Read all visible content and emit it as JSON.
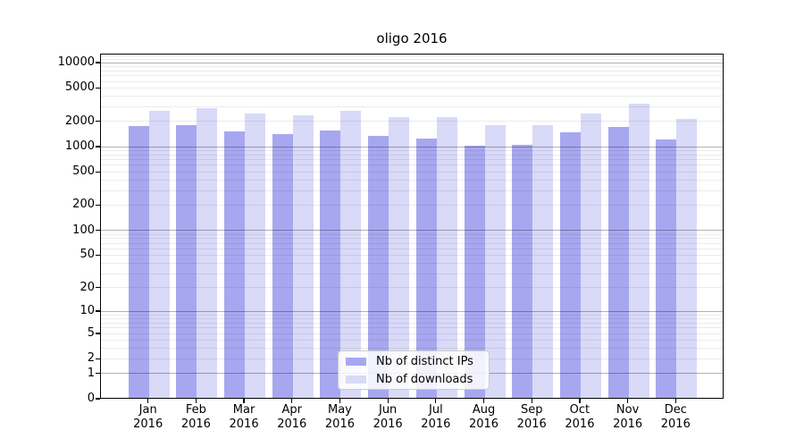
{
  "title": "oligo 2016",
  "chart_data": {
    "type": "bar",
    "scale": "log1p",
    "title": "oligo 2016",
    "xlabel": "",
    "ylabel": "",
    "categories": [
      "Jan",
      "Feb",
      "Mar",
      "Apr",
      "May",
      "Jun",
      "Jul",
      "Aug",
      "Sep",
      "Oct",
      "Nov",
      "Dec"
    ],
    "category_year": "2016",
    "series": [
      {
        "name": "Nb of distinct IPs",
        "color": "#a7a7f0",
        "values": [
          1730,
          1800,
          1510,
          1410,
          1530,
          1320,
          1230,
          1020,
          1040,
          1470,
          1690,
          1220
        ]
      },
      {
        "name": "Nb of downloads",
        "color": "#d9d9f8",
        "values": [
          2660,
          2870,
          2450,
          2320,
          2660,
          2220,
          2240,
          1770,
          1770,
          2480,
          3190,
          2140
        ]
      }
    ],
    "yticks": [
      10000,
      5000,
      2000,
      1000,
      500,
      200,
      100,
      50,
      20,
      10,
      5,
      2,
      1,
      0
    ],
    "ylim": [
      0,
      12770
    ],
    "grid": true,
    "grid_major_at": [
      1,
      10,
      100,
      1000,
      10000
    ],
    "legend_position": "lower-center",
    "colors": {
      "bar_dark": "#a7a7f0",
      "bar_light": "#d9d9f8",
      "grid_major": "#b3b3b3",
      "grid_minor": "#ececec",
      "axis": "#000000"
    }
  }
}
